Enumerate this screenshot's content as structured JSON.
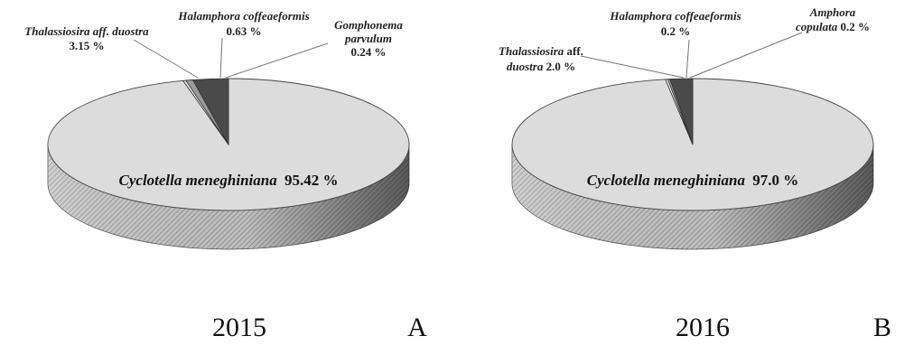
{
  "chart_data": [
    {
      "type": "pie",
      "style": "3d",
      "year": "2015",
      "panel": "A",
      "slices": [
        {
          "name": "Cyclotella meneghiniana",
          "value": 95.42,
          "label_value": "95.42 %",
          "color": "#dcdcdc"
        },
        {
          "name": "Thalassiosira aff. duostra",
          "value": 3.15,
          "label_value": "3.15 %",
          "color": "#4a4a4a"
        },
        {
          "name": "Halamphora coffeaeformis",
          "value": 0.63,
          "label_value": "0.63 %",
          "color": "#9a9a9a"
        },
        {
          "name": "Gomphonema parvulum",
          "value": 0.24,
          "label_value": "0.24 %",
          "color": "#f2f2f2"
        }
      ],
      "labels": {
        "main": {
          "italic": "Cyclotella meneghiniana",
          "value": "95.42 %"
        },
        "s1": {
          "line1_italic": "Thalassiosira",
          "line1_rest": " aff. duostra",
          "line2": "3.15 %"
        },
        "s2": {
          "line1_italic": "Halamphora coffeaeformis",
          "line2": "0.63 %"
        },
        "s3": {
          "line1_italic": "Gomphonema",
          "line2_italic": "parvulum",
          "line3": "0.24 %"
        }
      }
    },
    {
      "type": "pie",
      "style": "3d",
      "year": "2016",
      "panel": "B",
      "slices": [
        {
          "name": "Cyclotella meneghiniana",
          "value": 97.0,
          "label_value": "97.0 %",
          "color": "#dcdcdc"
        },
        {
          "name": "Thalassiosira aff. duostra",
          "value": 2.0,
          "label_value": "2.0 %",
          "color": "#4a4a4a"
        },
        {
          "name": "Halamphora coffeaeformis",
          "value": 0.2,
          "label_value": "0.2 %",
          "color": "#9a9a9a"
        },
        {
          "name": "Amphora copulata",
          "value": 0.2,
          "label_value": "0.2 %",
          "color": "#f2f2f2"
        }
      ],
      "labels": {
        "main": {
          "italic": "Cyclotella meneghiniana",
          "value": "97.0 %"
        },
        "s1": {
          "line1_italic": "Thalassiosira",
          "line1_rest": " aff.",
          "line2_italic": "duostra",
          "line2_rest": " 2.0 %"
        },
        "s2": {
          "line1_italic": "Halamphora coffeaeformis",
          "line2": "0.2 %"
        },
        "s3": {
          "line1_italic": "Amphora",
          "line2_italic": "copulata",
          "line2_rest": " 0.2 %"
        }
      }
    }
  ]
}
